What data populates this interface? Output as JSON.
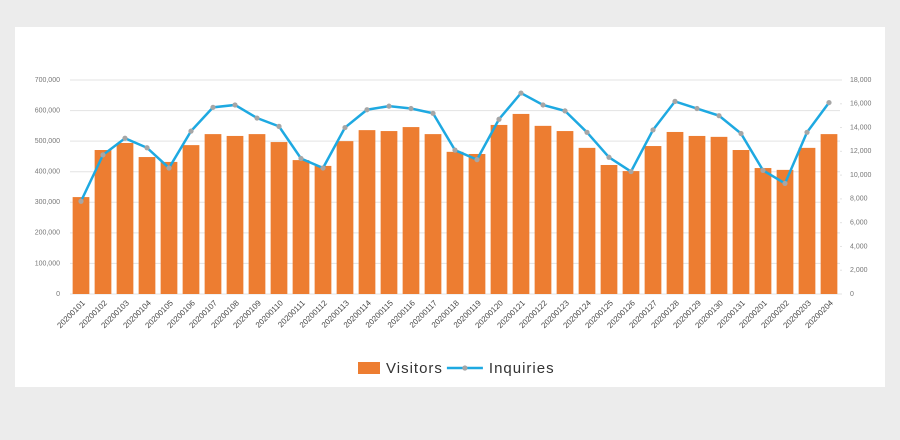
{
  "chart_data": {
    "type": "bar-line",
    "categories": [
      "20200101",
      "20200102",
      "20200103",
      "20200104",
      "20200105",
      "20200106",
      "20200107",
      "20200108",
      "20200109",
      "20200110",
      "20200111",
      "20200112",
      "20200113",
      "20200114",
      "20200115",
      "20200116",
      "20200117",
      "20200118",
      "20200119",
      "20200120",
      "20200121",
      "20200122",
      "20200123",
      "20200124",
      "20200125",
      "20200126",
      "20200127",
      "20200128",
      "20200129",
      "20200130",
      "20200131",
      "20200201",
      "20200202",
      "20200203",
      "20200204"
    ],
    "series": [
      {
        "name": "Visitors",
        "type": "bar",
        "color": "#ed7d31",
        "values": [
          317000,
          471000,
          494000,
          448000,
          432000,
          487000,
          523000,
          517000,
          523000,
          497000,
          438000,
          419000,
          500000,
          536000,
          533000,
          546000,
          523000,
          465000,
          458000,
          553000,
          589000,
          550000,
          533000,
          478000,
          422000,
          402000,
          484000,
          530000,
          517000,
          514000,
          471000,
          412000,
          406000,
          478000,
          523000
        ]
      },
      {
        "name": "Inquiries",
        "type": "line",
        "axis": "y2",
        "color": "#1ea9e1",
        "marker_color": "#a6a6a6",
        "values": [
          7800,
          11700,
          13100,
          12300,
          10600,
          13700,
          15700,
          15900,
          14800,
          14100,
          11400,
          10600,
          14000,
          15500,
          15800,
          15600,
          15200,
          12100,
          11300,
          14700,
          16900,
          15900,
          15400,
          13600,
          11500,
          10300,
          13800,
          16200,
          15600,
          15000,
          13500,
          10400,
          9300,
          13600,
          16100
        ]
      }
    ],
    "ylim": [
      0,
      700000
    ],
    "yticks": [
      0,
      {
        "value": 100000,
        "label": "100,000"
      },
      {
        "value": 200000,
        "label": "200,000"
      },
      {
        "value": 300000,
        "label": "300,000"
      },
      {
        "value": 400000,
        "label": "400,000"
      },
      {
        "value": 500000,
        "label": "500,000"
      },
      {
        "value": 600000,
        "label": "600,000"
      },
      {
        "value": 700000,
        "label": "700,000"
      }
    ],
    "y2lim": [
      0,
      18000
    ],
    "y2ticks": [
      0,
      {
        "value": 2000,
        "label": "2,000"
      },
      {
        "value": 4000,
        "label": "4,000"
      },
      {
        "value": 6000,
        "label": "6,000"
      },
      {
        "value": 8000,
        "label": "8,000"
      },
      {
        "value": 10000,
        "label": "10,000"
      },
      {
        "value": 12000,
        "label": "12,000"
      },
      {
        "value": 14000,
        "label": "14,000"
      },
      {
        "value": 16000,
        "label": "16,000"
      },
      {
        "value": 18000,
        "label": "18,000"
      }
    ],
    "grid": true,
    "legend": "bottom"
  }
}
